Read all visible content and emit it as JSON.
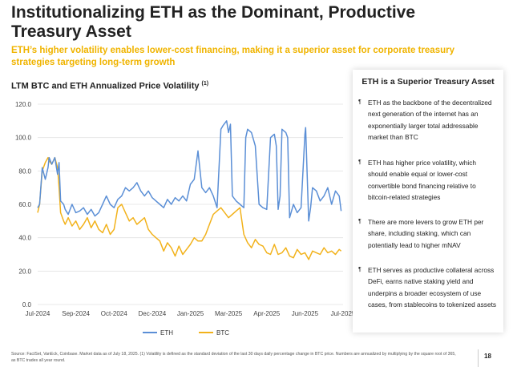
{
  "page": {
    "title": "Institutionalizing ETH as the Dominant, Productive Treasury Asset",
    "subtitle": "ETH’s higher volatility enables lower-cost financing, making it a superior asset for corporate treasury strategies targeting long-term growth",
    "footnote": "Source: FactSet, VanEck, Coinbase. Market data as of July 18, 2025. (1) Volatility is defined as the standard deviation of the last 30 days daily percentage change in BTC price. Numbers are annualized by multiplying by the square root of 365, as BTC trades all year round.",
    "page_number": "18"
  },
  "colors": {
    "eth": "#5b8fd6",
    "btc": "#f2b21b",
    "subtitle": "#f0b400",
    "grid": "#e2e2e2"
  },
  "chart_data": {
    "type": "line",
    "title": "LTM BTC and ETH Annualized Price Volatility",
    "title_footnote": "(1)",
    "xlabel": "",
    "ylabel": "",
    "ylim": [
      0,
      120
    ],
    "y_ticks": [
      "0.0",
      "20.0",
      "40.0",
      "60.0",
      "80.0",
      "100.0",
      "120.0"
    ],
    "x_ticks": [
      "Jul-2024",
      "Sep-2024",
      "Oct-2024",
      "Dec-2024",
      "Jan-2025",
      "Mar-2025",
      "Apr-2025",
      "Jun-2025",
      "Jul-2025"
    ],
    "x_range": [
      0,
      8
    ],
    "grid": true,
    "legend_position": "bottom",
    "series": [
      {
        "name": "ETH",
        "x": [
          0,
          0.05,
          0.12,
          0.2,
          0.27,
          0.3,
          0.37,
          0.45,
          0.52,
          0.56,
          0.6,
          0.68,
          0.72,
          0.8,
          0.9,
          1.0,
          1.1,
          1.2,
          1.3,
          1.4,
          1.5,
          1.6,
          1.7,
          1.8,
          1.9,
          2.0,
          2.1,
          2.2,
          2.3,
          2.4,
          2.5,
          2.6,
          2.7,
          2.8,
          2.9,
          3.0,
          3.1,
          3.2,
          3.3,
          3.4,
          3.5,
          3.6,
          3.7,
          3.8,
          3.9,
          4.0,
          4.1,
          4.2,
          4.3,
          4.4,
          4.5,
          4.6,
          4.7,
          4.8,
          4.85,
          4.95,
          5.0,
          5.05,
          5.1,
          5.2,
          5.3,
          5.4,
          5.45,
          5.5,
          5.6,
          5.7,
          5.8,
          5.9,
          6.0,
          6.1,
          6.2,
          6.25,
          6.3,
          6.35,
          6.4,
          6.5,
          6.55,
          6.6,
          6.7,
          6.8,
          6.9,
          7.0,
          7.02,
          7.1,
          7.15,
          7.2,
          7.3,
          7.4,
          7.5,
          7.6,
          7.7,
          7.8,
          7.9,
          7.95
        ],
        "values": [
          58,
          60,
          82,
          75,
          82,
          88,
          84,
          88,
          78,
          85,
          62,
          60,
          57,
          54,
          60,
          55,
          56,
          58,
          54,
          57,
          53,
          55,
          60,
          65,
          60,
          58,
          63,
          65,
          70,
          68,
          70,
          73,
          68,
          65,
          68,
          64,
          62,
          60,
          58,
          63,
          60,
          64,
          62,
          65,
          62,
          72,
          75,
          92,
          70,
          67,
          70,
          65,
          58,
          105,
          107,
          110,
          103,
          108,
          65,
          62,
          60,
          58,
          100,
          105,
          103,
          95,
          60,
          58,
          57,
          100,
          102,
          95,
          57,
          65,
          105,
          103,
          100,
          52,
          60,
          55,
          58,
          102,
          106,
          50,
          58,
          70,
          68,
          62,
          65,
          70,
          60,
          68,
          65,
          56
        ]
      },
      {
        "name": "BTC",
        "x": [
          0,
          0.05,
          0.12,
          0.2,
          0.27,
          0.3,
          0.37,
          0.45,
          0.52,
          0.56,
          0.6,
          0.68,
          0.72,
          0.8,
          0.9,
          1.0,
          1.1,
          1.2,
          1.3,
          1.4,
          1.5,
          1.6,
          1.7,
          1.8,
          1.9,
          2.0,
          2.1,
          2.2,
          2.3,
          2.4,
          2.5,
          2.6,
          2.7,
          2.8,
          2.9,
          3.0,
          3.1,
          3.2,
          3.3,
          3.4,
          3.5,
          3.6,
          3.7,
          3.8,
          3.9,
          4.0,
          4.1,
          4.2,
          4.3,
          4.4,
          4.5,
          4.6,
          4.7,
          4.8,
          4.9,
          5.0,
          5.1,
          5.2,
          5.3,
          5.4,
          5.5,
          5.6,
          5.7,
          5.8,
          5.9,
          6.0,
          6.1,
          6.2,
          6.3,
          6.4,
          6.5,
          6.6,
          6.7,
          6.8,
          6.9,
          7.0,
          7.1,
          7.2,
          7.3,
          7.4,
          7.5,
          7.6,
          7.7,
          7.8,
          7.9,
          7.95
        ],
        "values": [
          55,
          60,
          80,
          85,
          88,
          86,
          84,
          88,
          82,
          70,
          55,
          50,
          48,
          52,
          47,
          50,
          45,
          48,
          52,
          46,
          50,
          45,
          43,
          48,
          42,
          45,
          58,
          60,
          55,
          50,
          52,
          48,
          50,
          52,
          45,
          42,
          40,
          38,
          32,
          37,
          34,
          29,
          35,
          30,
          33,
          36,
          40,
          38,
          38,
          42,
          48,
          54,
          56,
          58,
          55,
          52,
          54,
          56,
          58,
          42,
          37,
          34,
          39,
          36,
          35,
          31,
          30,
          36,
          30,
          31,
          34,
          29,
          28,
          33,
          30,
          31,
          27,
          32,
          31,
          30,
          34,
          31,
          32,
          30,
          33,
          32
        ]
      }
    ]
  },
  "panel": {
    "title": "ETH is a Superior Treasury Asset",
    "bullet_marker": "¶",
    "bullets": [
      "ETH as the backbone of the decentralized next generation of the internet has an exponentially larger total addressable market than BTC",
      "ETH has higher price volatility, which should enable equal or lower-cost convertible bond financing relative to bitcoin-related strategies",
      "There are more levers to grow ETH per share, including staking, which can potentially lead to higher mNAV",
      "ETH serves as productive collateral across DeFi, earns native staking yield and underpins a broader ecosystem of use cases, from stablecoins to tokenized assets"
    ]
  }
}
